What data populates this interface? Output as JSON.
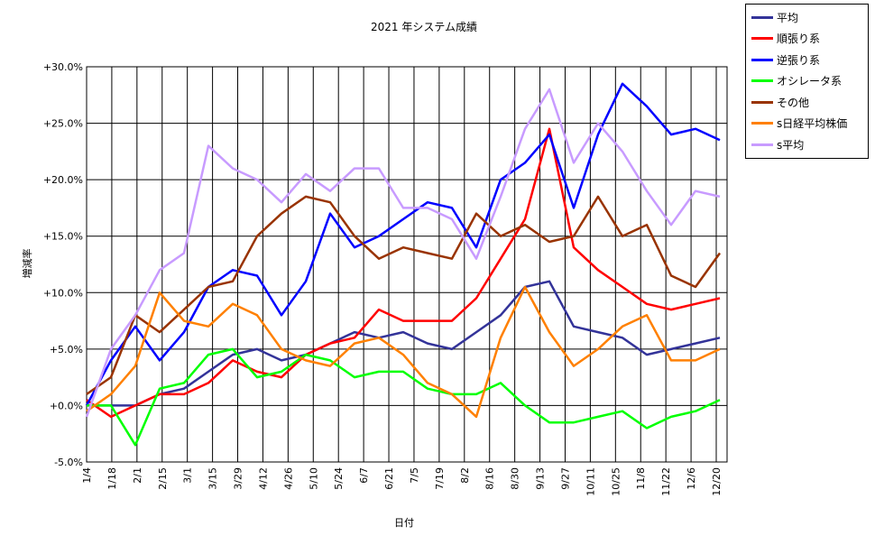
{
  "chart_data": {
    "type": "line",
    "title": "2021 年システム成績",
    "xlabel": "日付",
    "ylabel": "増減率",
    "ylim": [
      -5,
      30
    ],
    "yticks": [
      "+30.0%",
      "+25.0%",
      "+20.0%",
      "+15.0%",
      "+10.0%",
      "+5.0%",
      "+0.0%",
      "-5.0%"
    ],
    "ytick_values": [
      30,
      25,
      20,
      15,
      10,
      5,
      0,
      -5
    ],
    "xticks": [
      "1/4",
      "1/18",
      "2/1",
      "2/15",
      "3/1",
      "3/15",
      "3/29",
      "4/12",
      "4/26",
      "5/10",
      "5/24",
      "6/7",
      "6/21",
      "7/5",
      "7/19",
      "8/2",
      "8/16",
      "8/30",
      "9/13",
      "9/27",
      "10/11",
      "10/25",
      "11/8",
      "11/22",
      "12/6",
      "12/20"
    ],
    "grid": true,
    "legend_position": "top-right outside",
    "series": [
      {
        "name": "平均",
        "color": "#333399",
        "values": [
          0,
          0,
          0,
          1,
          1.5,
          3,
          4.5,
          5,
          4,
          4.5,
          5.5,
          6.5,
          6,
          6.5,
          5.5,
          5,
          6.5,
          8,
          10.5,
          11,
          7,
          6.5,
          6,
          4.5,
          5,
          5.5,
          6
        ]
      },
      {
        "name": "順張り系",
        "color": "#ff0000",
        "values": [
          0.5,
          -1,
          0,
          1,
          1,
          2,
          4,
          3,
          2.5,
          4.5,
          5.5,
          6,
          8.5,
          7.5,
          7.5,
          7.5,
          9.5,
          13,
          16.5,
          24.5,
          14,
          12,
          10.5,
          9,
          8.5,
          9,
          9.5
        ]
      },
      {
        "name": "逆張り系",
        "color": "#0000ff",
        "values": [
          0,
          4,
          7,
          4,
          6.5,
          10.5,
          12,
          11.5,
          8,
          11,
          17,
          14,
          15,
          16.5,
          18,
          17.5,
          14,
          20,
          21.5,
          24,
          17.5,
          24,
          28.5,
          26.5,
          24,
          24.5,
          23.5
        ]
      },
      {
        "name": "オシレータ系",
        "color": "#00ff00",
        "values": [
          0,
          0,
          -3.5,
          1.5,
          2,
          4.5,
          5,
          2.5,
          3,
          4.5,
          4,
          2.5,
          3,
          3,
          1.5,
          1,
          1,
          2,
          0,
          -1.5,
          -1.5,
          -1,
          -0.5,
          -2,
          -1,
          -0.5,
          0.5
        ]
      },
      {
        "name": "その他",
        "color": "#993300",
        "values": [
          1,
          2.5,
          8,
          6.5,
          8.5,
          10.5,
          11,
          15,
          17,
          18.5,
          18,
          15,
          13,
          14,
          13.5,
          13,
          17,
          15,
          16,
          14.5,
          15,
          18.5,
          15,
          16,
          11.5,
          10.5,
          13.5
        ]
      },
      {
        "name": "s日経平均株価",
        "color": "#ff8000",
        "values": [
          -0.5,
          1,
          3.5,
          10,
          7.5,
          7,
          9,
          8,
          5,
          4,
          3.5,
          5.5,
          6,
          4.5,
          2,
          1,
          -1,
          6,
          10.5,
          6.5,
          3.5,
          5,
          7,
          8,
          4,
          4,
          5
        ]
      },
      {
        "name": "s平均",
        "color": "#c89bff",
        "values": [
          -1,
          5,
          8,
          12,
          13.5,
          23,
          21,
          20,
          18,
          20.5,
          19,
          21,
          21,
          17.5,
          17.5,
          16.5,
          13,
          18.5,
          24.5,
          28,
          21.5,
          25,
          22.5,
          19,
          16,
          19,
          18.5
        ]
      }
    ]
  }
}
